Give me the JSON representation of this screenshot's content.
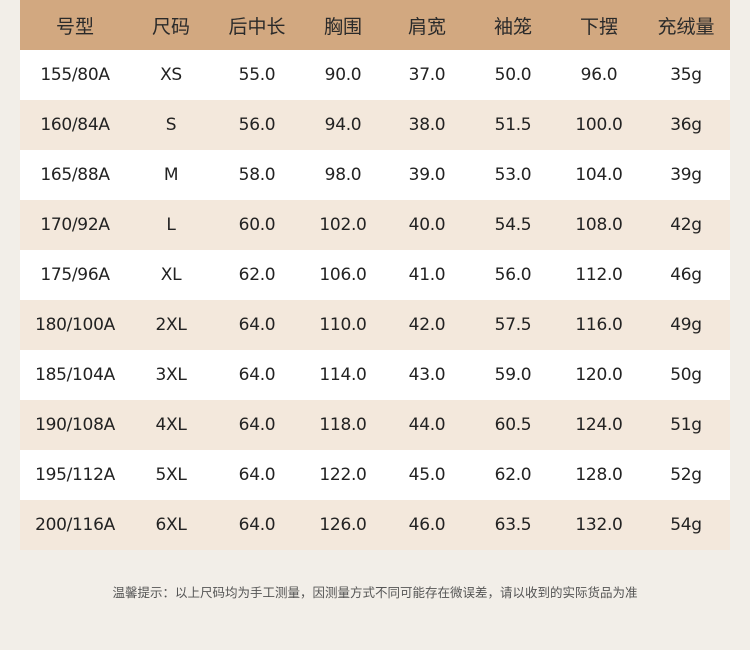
{
  "table": {
    "headers": [
      "号型",
      "尺码",
      "后中长",
      "胸围",
      "肩宽",
      "袖笼",
      "下摆",
      "充绒量"
    ],
    "rows": [
      [
        "155/80A",
        "XS",
        "55.0",
        "90.0",
        "37.0",
        "50.0",
        "96.0",
        "35g"
      ],
      [
        "160/84A",
        "S",
        "56.0",
        "94.0",
        "38.0",
        "51.5",
        "100.0",
        "36g"
      ],
      [
        "165/88A",
        "M",
        "58.0",
        "98.0",
        "39.0",
        "53.0",
        "104.0",
        "39g"
      ],
      [
        "170/92A",
        "L",
        "60.0",
        "102.0",
        "40.0",
        "54.5",
        "108.0",
        "42g"
      ],
      [
        "175/96A",
        "XL",
        "62.0",
        "106.0",
        "41.0",
        "56.0",
        "112.0",
        "46g"
      ],
      [
        "180/100A",
        "2XL",
        "64.0",
        "110.0",
        "42.0",
        "57.5",
        "116.0",
        "49g"
      ],
      [
        "185/104A",
        "3XL",
        "64.0",
        "114.0",
        "43.0",
        "59.0",
        "120.0",
        "50g"
      ],
      [
        "190/108A",
        "4XL",
        "64.0",
        "118.0",
        "44.0",
        "60.5",
        "124.0",
        "51g"
      ],
      [
        "195/112A",
        "5XL",
        "64.0",
        "122.0",
        "45.0",
        "62.0",
        "128.0",
        "52g"
      ],
      [
        "200/116A",
        "6XL",
        "64.0",
        "126.0",
        "46.0",
        "63.5",
        "132.0",
        "54g"
      ]
    ]
  },
  "note": "温馨提示：以上尺码均为手工测量，因测量方式不同可能存在微误差，请以收到的实际货品为准",
  "colors": {
    "header_bg": "#d2a880",
    "row_odd": "#ffffff",
    "row_even": "#f3e8dc",
    "page_bg": "#f2eee8"
  }
}
